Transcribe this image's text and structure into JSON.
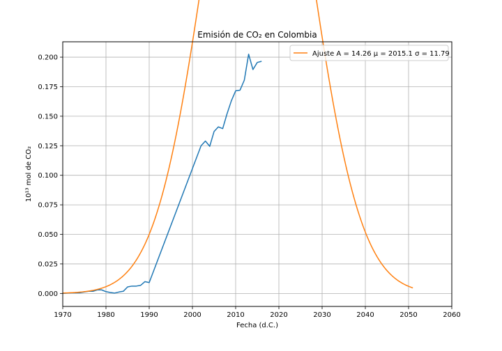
{
  "chart_data": {
    "type": "line",
    "title": "Emisión de CO₂ en Colombia",
    "xlabel": "Fecha (d.C.)",
    "ylabel": "10¹³ mol de CO₂",
    "xlim": [
      1970,
      2060
    ],
    "ylim": [
      -0.011,
      0.213
    ],
    "xticks": [
      1970,
      1980,
      1990,
      2000,
      2010,
      2020,
      2030,
      2040,
      2050,
      2060
    ],
    "yticks": [
      0.0,
      0.025,
      0.05,
      0.075,
      0.1,
      0.125,
      0.15,
      0.175,
      0.2
    ],
    "ytick_labels": [
      "0.000",
      "0.025",
      "0.050",
      "0.075",
      "0.100",
      "0.125",
      "0.150",
      "0.175",
      "0.200"
    ],
    "grid": true,
    "legend_position": "top-right",
    "series": [
      {
        "name": "",
        "color": "#1f77b4",
        "x": [
          1970,
          1971,
          1972,
          1973,
          1974,
          1975,
          1976,
          1977,
          1978,
          1979,
          1980,
          1981,
          1982,
          1983,
          1984,
          1985,
          1986,
          1987,
          1988,
          1989,
          1990,
          2002,
          2003,
          2004,
          2005,
          2006,
          2007,
          2008,
          2009,
          2010,
          2011,
          2012,
          2013,
          2014,
          2015,
          2016
        ],
        "y": [
          0.0,
          0.0003,
          0.0005,
          0.0005,
          0.0006,
          0.0012,
          0.0018,
          0.0018,
          0.003,
          0.003,
          0.0015,
          0.0008,
          0.0003,
          0.0012,
          0.0018,
          0.0055,
          0.0062,
          0.0062,
          0.0068,
          0.01,
          0.0092,
          0.125,
          0.129,
          0.1245,
          0.137,
          0.141,
          0.1395,
          0.152,
          0.163,
          0.1715,
          0.172,
          0.1805,
          0.2025,
          0.1895,
          0.1955,
          0.1965
        ]
      },
      {
        "name": "Ajuste A = 14.26 μ = 2015.1 σ = 11.79",
        "color": "#ff7f0e",
        "fit": {
          "A": 14.26,
          "mu": 2015.1,
          "sigma": 11.79
        },
        "x_range": [
          1970,
          2051
        ]
      }
    ]
  },
  "legend": {
    "fit_label": "Ajuste A = 14.26 μ = 2015.1 σ = 11.79"
  }
}
